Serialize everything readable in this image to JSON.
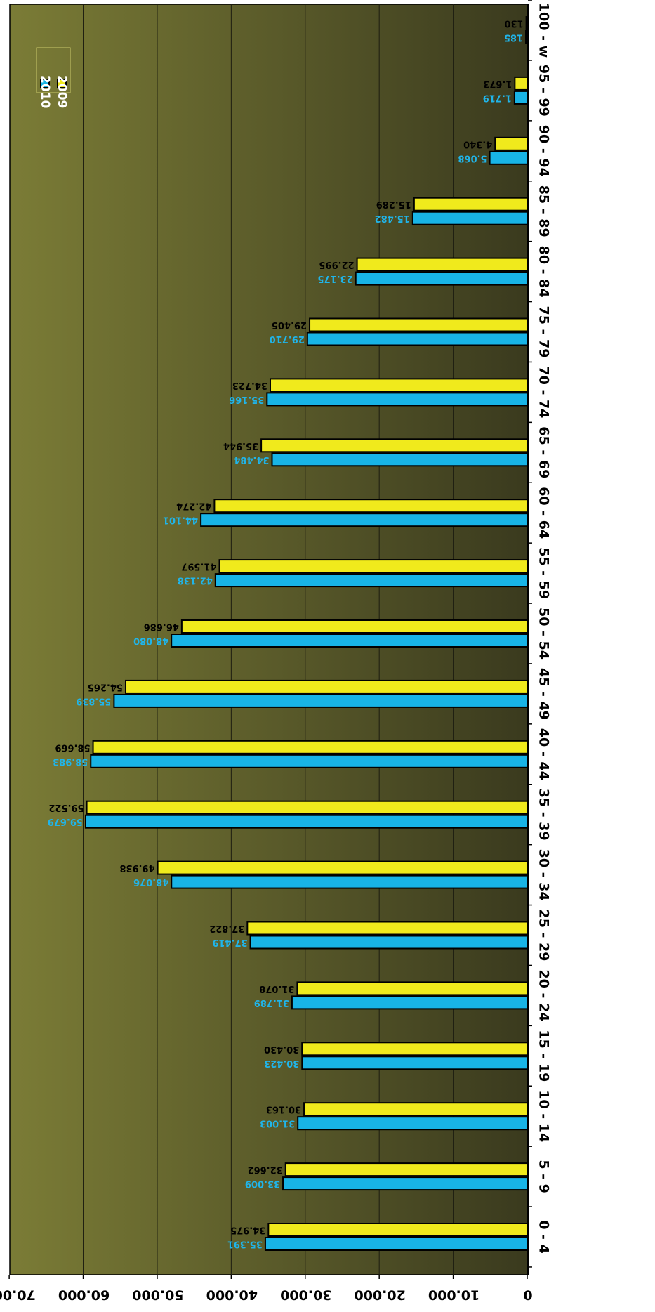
{
  "chart_data": {
    "type": "bar",
    "orientation": "horizontal",
    "rotated_degrees": 180,
    "categories": [
      "0 - 4",
      "5 - 9",
      "10 - 14",
      "15 - 19",
      "20 - 24",
      "25 - 29",
      "30 - 34",
      "35 - 39",
      "40 - 44",
      "45 - 49",
      "50 - 54",
      "55 - 59",
      "60 - 64",
      "65 - 69",
      "70 - 74",
      "75 - 79",
      "80 - 84",
      "85 - 89",
      "90 - 94",
      "95 - 99",
      "100 - w"
    ],
    "series": [
      {
        "name": "2010",
        "color": "#18b4e6",
        "values": [
          35391,
          33009,
          31003,
          30423,
          31789,
          37419,
          48076,
          59679,
          58983,
          55839,
          48080,
          42138,
          44101,
          34484,
          35166,
          29710,
          23175,
          15482,
          5068,
          1719,
          185
        ],
        "labels": [
          "35.391",
          "33.009",
          "31.003",
          "30.423",
          "31.789",
          "37.419",
          "48.076",
          "59.679",
          "58.983",
          "55.839",
          "48.080",
          "42.138",
          "44.101",
          "34.484",
          "35.166",
          "29.710",
          "23.175",
          "15.482",
          "5.068",
          "1.719",
          "185"
        ]
      },
      {
        "name": "2009",
        "color": "#f0ea1c",
        "values": [
          34975,
          32662,
          30163,
          30430,
          31078,
          37822,
          49938,
          59522,
          58669,
          54265,
          46686,
          41597,
          42274,
          35944,
          34723,
          29405,
          22995,
          15289,
          4340,
          1673,
          130
        ],
        "labels": [
          "34.975",
          "32.662",
          "30.163",
          "30.430",
          "31.078",
          "37.822",
          "49.938",
          "59.522",
          "58.669",
          "54.265",
          "46.686",
          "41.597",
          "42.274",
          "35.944",
          "34.723",
          "29.405",
          "22.995",
          "15.289",
          "4.340",
          "1.673",
          "130"
        ]
      }
    ],
    "value_axis": {
      "min": 0,
      "max": 70000,
      "step": 10000,
      "tick_labels": [
        "0",
        "10.000",
        "20.000",
        "30.000",
        "40.000",
        "50.000",
        "60.000",
        "70.000"
      ]
    },
    "title": "",
    "xlabel": "",
    "ylabel": "",
    "grid": true,
    "legend_placement": "bottom-left (as displayed, image rotated 180°)",
    "background": {
      "gradient_light": "#7b7c36",
      "gradient_dark": "#3a3a1e"
    }
  }
}
